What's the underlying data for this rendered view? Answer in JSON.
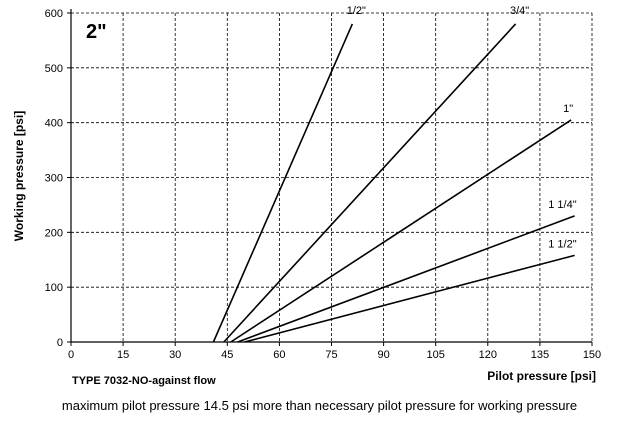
{
  "chart_data": {
    "type": "line",
    "title": "2\"",
    "xlabel": "Pilot pressure [psi]",
    "ylabel": "Working pressure [psi]",
    "subtitle": "TYPE 7032-NO-against flow",
    "xlim": [
      0,
      150
    ],
    "ylim": [
      0,
      600
    ],
    "x_ticks": [
      0,
      15,
      30,
      45,
      60,
      75,
      90,
      105,
      120,
      135,
      150
    ],
    "y_ticks": [
      0,
      100,
      200,
      300,
      400,
      500,
      600
    ],
    "grid": true,
    "series": [
      {
        "name": "1/2\"",
        "x": [
          41,
          81
        ],
        "y": [
          0,
          580
        ]
      },
      {
        "name": "3/4\"",
        "x": [
          44,
          128
        ],
        "y": [
          0,
          580
        ]
      },
      {
        "name": "1\"",
        "x": [
          46,
          144
        ],
        "y": [
          0,
          405
        ]
      },
      {
        "name": "1 1/4\"",
        "x": [
          48,
          145
        ],
        "y": [
          0,
          230
        ]
      },
      {
        "name": "1 1/2\"",
        "x": [
          50,
          145
        ],
        "y": [
          0,
          158
        ]
      }
    ]
  },
  "caption": "maximum pilot pressure 14.5 psi more than necessary pilot pressure for working pressure"
}
